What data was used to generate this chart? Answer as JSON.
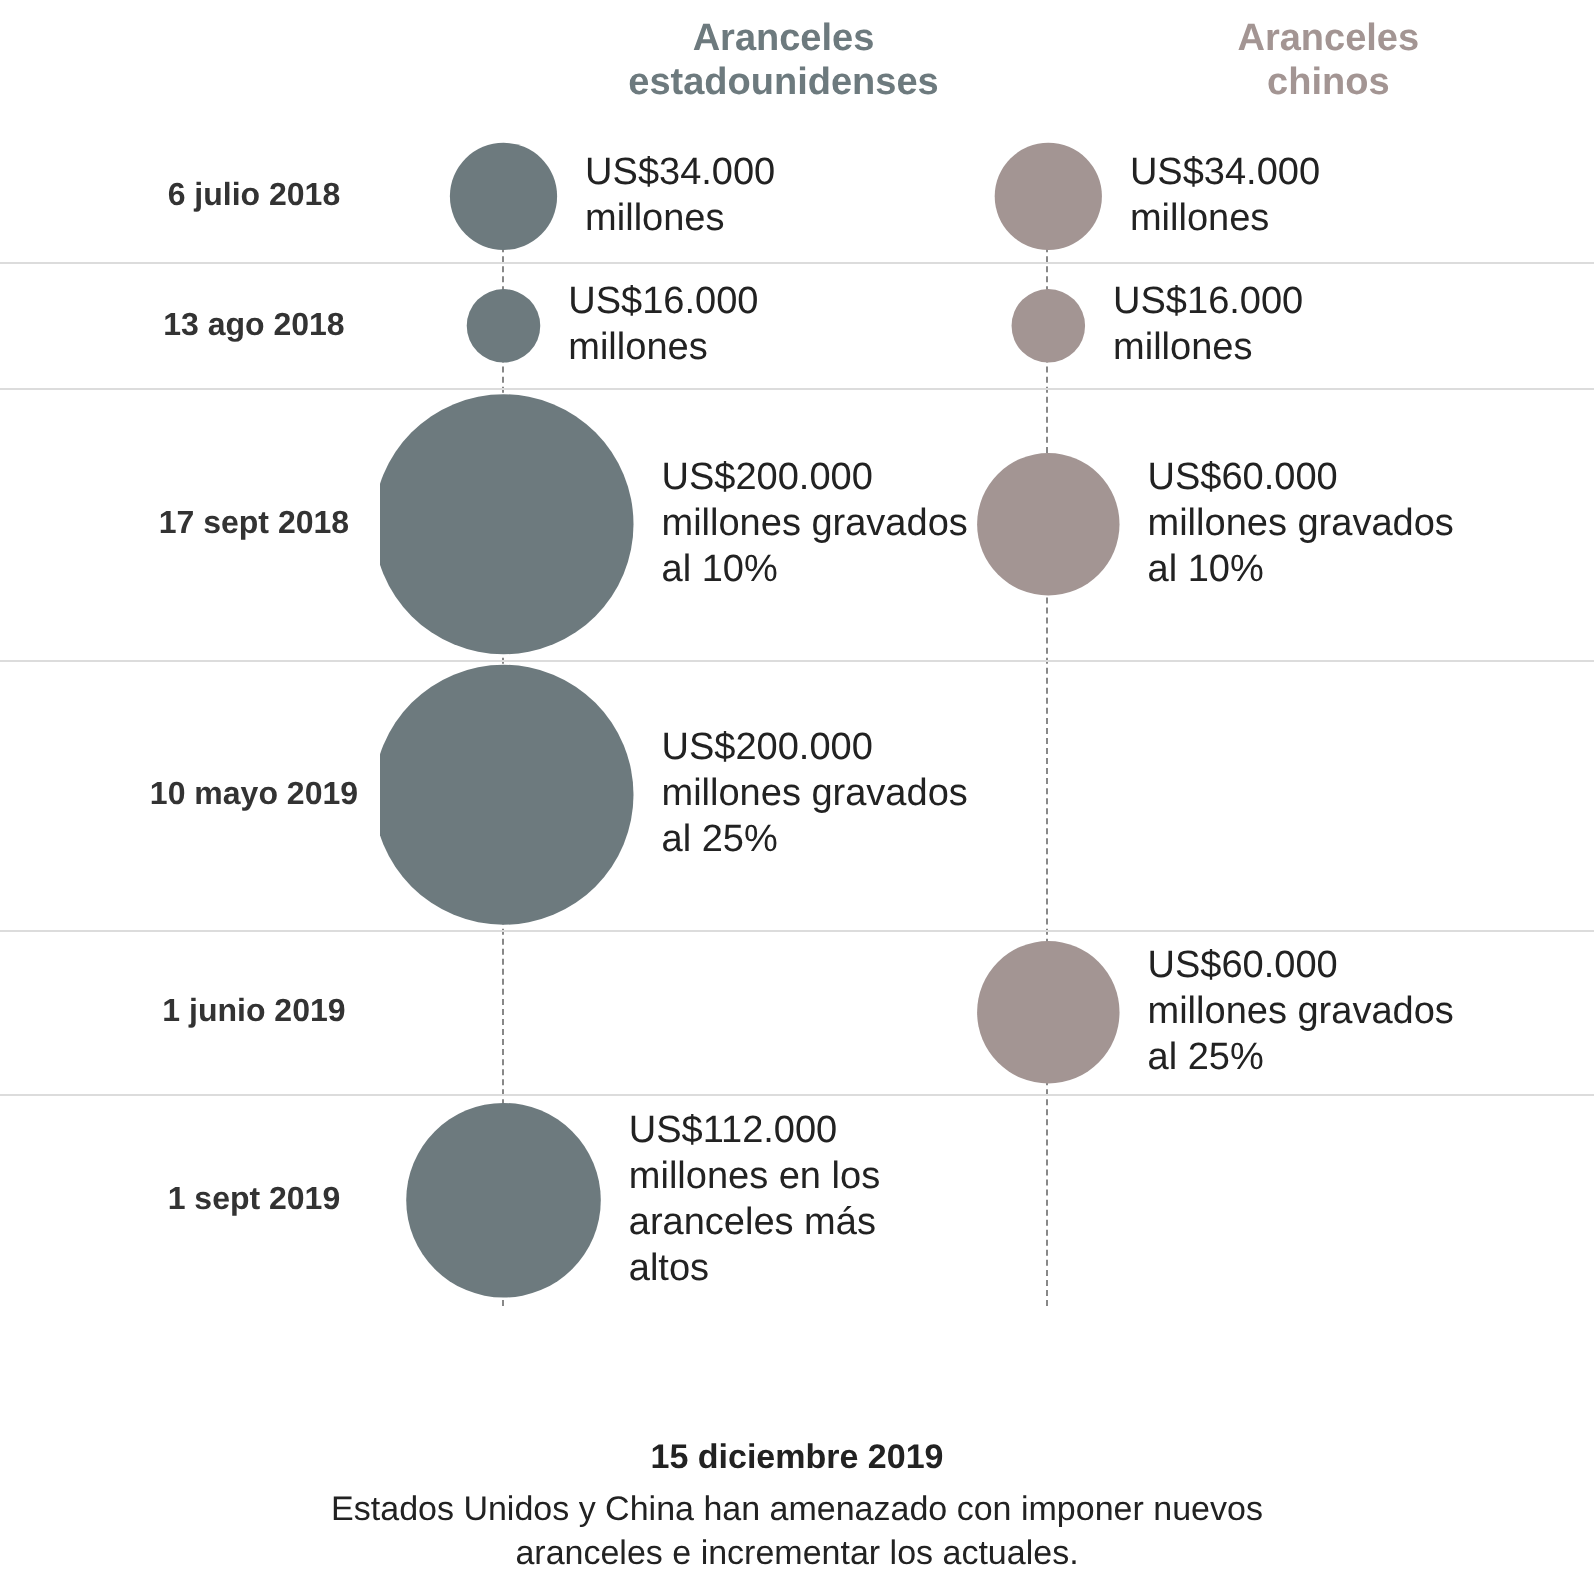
{
  "chart_data": {
    "type": "other",
    "categories": [
      "6 julio 2018",
      "13 ago 2018",
      "17 sept 2018",
      "10 mayo 2019",
      "1 junio 2019",
      "1 sept 2019"
    ],
    "series": [
      {
        "name": "Aranceles estadounidenses",
        "color": "#6d7a7e",
        "values": [
          34000,
          16000,
          200000,
          200000,
          null,
          112000
        ],
        "value_labels": [
          "US$34.000 millones",
          "US$16.000 millones",
          "US$200.000 millones gravados al 10%",
          "US$200.000 millones gravados al 25%",
          null,
          "US$112.000 millones en los aranceles más altos"
        ]
      },
      {
        "name": "Aranceles chinos",
        "color": "#a39593",
        "values": [
          34000,
          16000,
          60000,
          null,
          60000,
          null
        ],
        "value_labels": [
          "US$34.000 millones",
          "US$16.000 millones",
          "US$60.000 millones gravados al 10%",
          null,
          "US$60.000 millones gravados al 25%",
          null
        ]
      }
    ],
    "annotations": [
      "15 diciembre 2019",
      "Estados Unidos y China han amenazado con imponer nuevos aranceles e incrementar los actuales."
    ]
  }
}
